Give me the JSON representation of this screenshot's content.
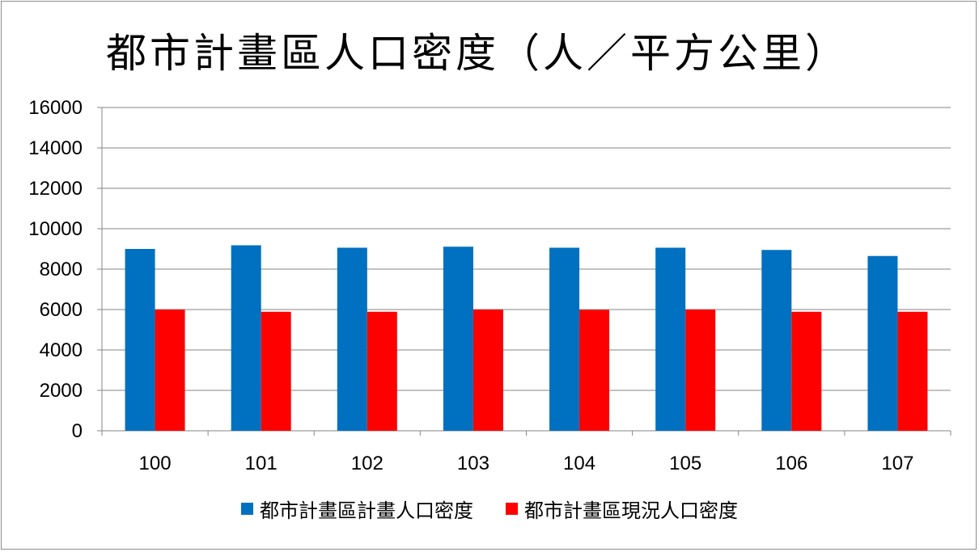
{
  "chart_data": {
    "type": "bar",
    "title": "都市計畫區人口密度（人／平方公里）",
    "categories": [
      "100",
      "101",
      "102",
      "103",
      "104",
      "105",
      "106",
      "107"
    ],
    "series": [
      {
        "name": "都市計畫區計畫人口密度",
        "color": "#0070C0",
        "values": [
          9000,
          9180,
          9060,
          9110,
          9060,
          9060,
          8950,
          8650
        ]
      },
      {
        "name": "都市計畫區現況人口密度",
        "color": "#FF0000",
        "values": [
          6000,
          5890,
          5890,
          6000,
          5980,
          6000,
          5890,
          5890
        ]
      }
    ],
    "ylim": [
      0,
      16000
    ],
    "yticks": [
      "0",
      "2000",
      "4000",
      "6000",
      "8000",
      "10000",
      "12000",
      "14000",
      "16000"
    ],
    "xlabel": "",
    "ylabel": "",
    "grid": true,
    "legend_position": "bottom"
  }
}
